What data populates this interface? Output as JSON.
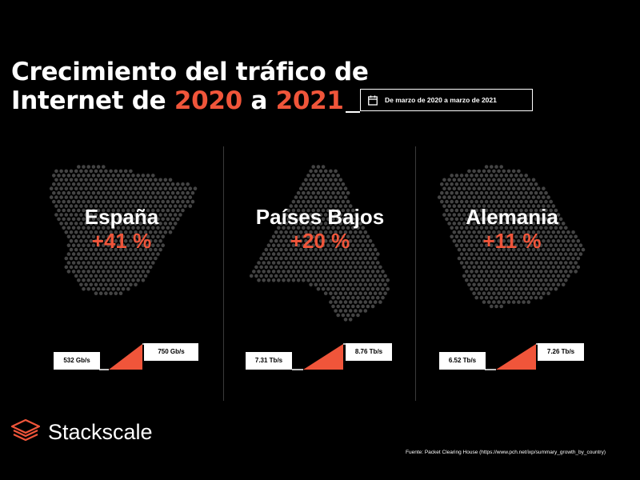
{
  "title": {
    "line1": "Crecimiento del tráfico de",
    "line2_prefix": "Internet de ",
    "year_from": "2020",
    "connector": " a ",
    "year_to": "2021"
  },
  "date_range": "De marzo de 2020 a marzo de 2021",
  "accent_color": "#f0553a",
  "countries": [
    {
      "name": "España",
      "growth": "+41 %",
      "from": "532 Gb/s",
      "to": "750 Gb/s"
    },
    {
      "name": "Países Bajos",
      "growth": "+20 %",
      "from": "7.31 Tb/s",
      "to": "8.76 Tb/s"
    },
    {
      "name": "Alemania",
      "growth": "+11 %",
      "from": "6.52 Tb/s",
      "to": "7.26 Tb/s"
    }
  ],
  "brand": {
    "name": "Stackscale",
    "icon": "stack-layers-icon"
  },
  "source": "Fuente: Packet Clearing House (https://www.pch.net/ixp/summary_growth_by_country)"
}
